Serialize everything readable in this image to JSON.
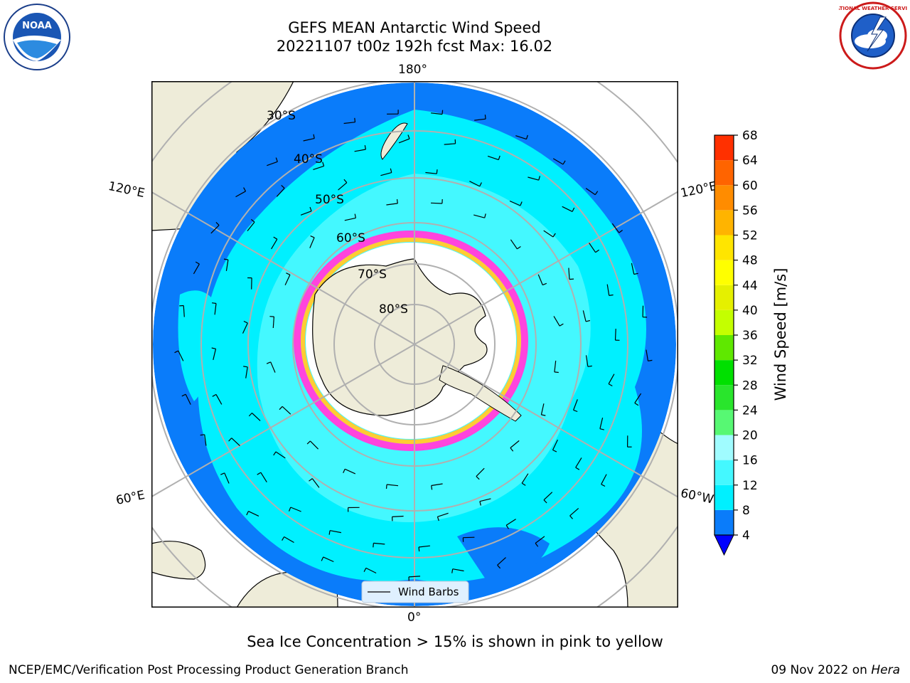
{
  "title": {
    "line1": "GEFS MEAN Antarctic Wind Speed",
    "line2": "20221107 t00z 192h fcst   Max: 16.02"
  },
  "map": {
    "projection": "south-polar-stereographic",
    "lon_labels": {
      "top": "180°",
      "right_upper": "120°E",
      "left_upper": "120°E",
      "left_lower": "60°E",
      "right_lower": "60°W",
      "bottom": "0°"
    },
    "lat_labels": [
      "30°S",
      "40°S",
      "50°S",
      "60°S",
      "70°S",
      "80°S"
    ],
    "legend_label": "Wind Barbs",
    "colors": {
      "land": "#eeecd9",
      "speed_4_8": "#0a7cfa",
      "speed_8_12": "#00f0ff",
      "speed_12_16": "#44f8ff",
      "ice_pink": "#ff44dd",
      "ice_yellow": "#ffcc33",
      "gridline": "#b0b0b0"
    }
  },
  "colorbar": {
    "label": "Wind Speed [m/s]",
    "ticks": [
      "4",
      "8",
      "12",
      "16",
      "20",
      "24",
      "28",
      "32",
      "36",
      "40",
      "44",
      "48",
      "52",
      "56",
      "60",
      "64",
      "68"
    ],
    "colors": [
      "#0a7cfa",
      "#00f0ff",
      "#44f8ff",
      "#a0fcff",
      "#57f873",
      "#29e52c",
      "#00e000",
      "#5fe800",
      "#c4ff00",
      "#e5f000",
      "#ffff00",
      "#ffe500",
      "#ffb400",
      "#ff8c00",
      "#ff6400",
      "#ff3000",
      "#ff0000"
    ],
    "extend_color": "#0000ff"
  },
  "caption": "Sea Ice Concentration > 15% is shown in pink to yellow",
  "footer": {
    "left": "NCEP/EMC/Verification Post Processing Product Generation Branch",
    "right_date": "09 Nov 2022 on ",
    "right_host": "Hera"
  },
  "logos": {
    "noaa_text": "NOAA",
    "nws_text": "NATIONAL WEATHER SERVICE"
  }
}
